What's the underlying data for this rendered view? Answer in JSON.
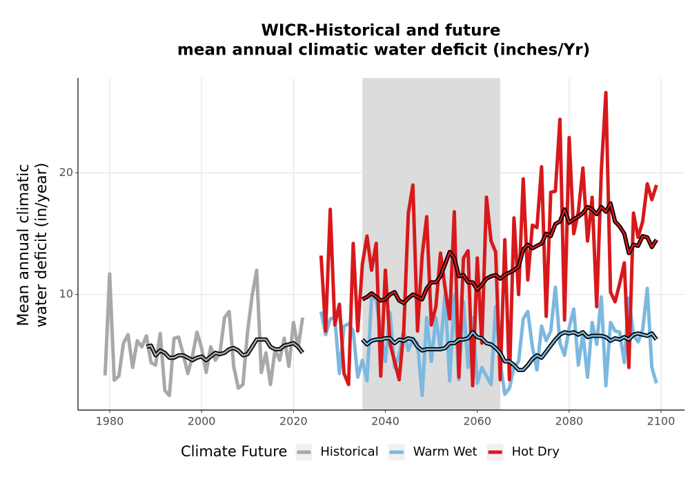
{
  "chart_data": {
    "type": "line",
    "title": [
      "WICR-Historical and future",
      "mean annual climatic water deficit (inches/Yr)"
    ],
    "y_label": [
      "Mean annual climatic",
      "water deficit (in/year)"
    ],
    "legend_title": "Climate Future",
    "legend_position": "bottom",
    "grid": true,
    "xlim": [
      1973.1,
      2105.1
    ],
    "xticks": [
      1980,
      2000,
      2020,
      2040,
      2060,
      2080,
      2100
    ],
    "ylim": [
      0.5,
      27.8
    ],
    "yticks": [
      10,
      20
    ],
    "shade": {
      "range": [
        2035,
        2065
      ],
      "color": "#dcdcdc"
    },
    "trend_color": "#000000",
    "series": [
      {
        "name": "Historical",
        "color": "#a8a8a8",
        "x": [
          1979,
          1980,
          1981,
          1982,
          1983,
          1984,
          1985,
          1986,
          1987,
          1988,
          1989,
          1990,
          1991,
          1992,
          1993,
          1994,
          1995,
          1996,
          1997,
          1998,
          1999,
          2000,
          2001,
          2002,
          2003,
          2004,
          2005,
          2006,
          2007,
          2008,
          2009,
          2010,
          2011,
          2012,
          2013,
          2014,
          2015,
          2016,
          2017,
          2018,
          2019,
          2020,
          2021,
          2022
        ],
        "values": [
          3.35,
          11.7,
          2.95,
          3.3,
          6.0,
          6.7,
          4.0,
          6.2,
          5.7,
          6.6,
          4.4,
          4.2,
          6.8,
          2.1,
          1.7,
          6.4,
          6.5,
          5.1,
          3.5,
          4.9,
          6.9,
          5.6,
          3.6,
          5.7,
          4.6,
          5.2,
          8.1,
          8.6,
          4.1,
          2.3,
          2.6,
          6.9,
          9.9,
          12.0,
          3.6,
          5.2,
          2.6,
          5.5,
          4.6,
          6.4,
          4.1,
          7.7,
          5.6,
          8.1
        ],
        "trend": [
          null,
          null,
          null,
          null,
          null,
          null,
          null,
          null,
          null,
          5.7,
          5.8,
          5.0,
          5.4,
          5.2,
          4.8,
          4.8,
          5.0,
          5.0,
          4.8,
          4.6,
          4.8,
          4.9,
          4.6,
          4.9,
          5.2,
          5.1,
          5.2,
          5.5,
          5.6,
          5.4,
          5.0,
          5.1,
          5.7,
          6.3,
          6.3,
          6.3,
          5.7,
          5.5,
          5.5,
          5.8,
          5.9,
          6.0,
          5.7,
          5.2
        ]
      },
      {
        "name": "Warm Wet",
        "color": "#7cb8e0",
        "x": [
          2026,
          2027,
          2028,
          2029,
          2030,
          2031,
          2032,
          2033,
          2034,
          2035,
          2036,
          2037,
          2038,
          2039,
          2040,
          2041,
          2042,
          2043,
          2044,
          2045,
          2046,
          2047,
          2048,
          2049,
          2050,
          2051,
          2052,
          2053,
          2054,
          2055,
          2056,
          2057,
          2058,
          2059,
          2060,
          2061,
          2062,
          2063,
          2064,
          2065,
          2066,
          2067,
          2068,
          2069,
          2070,
          2071,
          2072,
          2073,
          2074,
          2075,
          2076,
          2077,
          2078,
          2079,
          2080,
          2081,
          2082,
          2083,
          2084,
          2085,
          2086,
          2087,
          2088,
          2089,
          2090,
          2091,
          2092,
          2093,
          2094,
          2095,
          2096,
          2097,
          2098,
          2099
        ],
        "values": [
          8.6,
          6.7,
          8.0,
          8.1,
          3.5,
          7.4,
          7.6,
          7.0,
          3.2,
          4.6,
          2.9,
          9.8,
          9.6,
          6.9,
          4.5,
          8.5,
          4.0,
          5.1,
          7.0,
          5.4,
          6.4,
          6.0,
          1.7,
          8.1,
          4.5,
          8.1,
          5.5,
          10.1,
          2.9,
          10.0,
          3.0,
          9.4,
          4.0,
          8.1,
          2.7,
          4.0,
          3.3,
          2.6,
          9.0,
          4.4,
          1.8,
          2.3,
          4.0,
          4.5,
          8.0,
          8.6,
          5.7,
          3.8,
          7.4,
          6.2,
          7.0,
          10.6,
          6.0,
          5.0,
          7.3,
          8.8,
          4.2,
          6.8,
          3.2,
          7.7,
          5.9,
          9.8,
          2.5,
          7.7,
          7.0,
          6.9,
          4.4,
          9.7,
          6.7,
          6.1,
          7.1,
          10.5,
          4.0,
          2.7
        ],
        "trend": [
          null,
          null,
          null,
          null,
          null,
          null,
          null,
          null,
          null,
          6.3,
          5.9,
          6.2,
          6.3,
          6.3,
          6.4,
          6.4,
          6.0,
          6.3,
          6.2,
          6.4,
          6.3,
          5.7,
          5.4,
          5.5,
          5.5,
          5.5,
          5.5,
          5.6,
          6.0,
          6.0,
          6.3,
          6.3,
          6.4,
          6.9,
          6.5,
          6.4,
          6.0,
          5.9,
          5.6,
          5.2,
          4.5,
          4.5,
          4.2,
          3.8,
          3.8,
          4.2,
          4.7,
          5.0,
          4.8,
          5.3,
          5.8,
          6.3,
          6.7,
          6.9,
          6.8,
          6.9,
          6.7,
          6.9,
          6.5,
          6.6,
          6.6,
          6.6,
          6.5,
          6.2,
          6.4,
          6.3,
          6.5,
          6.3,
          6.7,
          6.8,
          6.7,
          6.6,
          6.8,
          6.3
        ]
      },
      {
        "name": "Hot Dry",
        "color": "#d7191c",
        "x": [
          2026,
          2027,
          2028,
          2029,
          2030,
          2031,
          2032,
          2033,
          2034,
          2035,
          2036,
          2037,
          2038,
          2039,
          2040,
          2041,
          2042,
          2043,
          2044,
          2045,
          2046,
          2047,
          2048,
          2049,
          2050,
          2051,
          2052,
          2053,
          2054,
          2055,
          2056,
          2057,
          2058,
          2059,
          2060,
          2061,
          2062,
          2063,
          2064,
          2065,
          2066,
          2067,
          2068,
          2069,
          2070,
          2071,
          2072,
          2073,
          2074,
          2075,
          2076,
          2077,
          2078,
          2079,
          2080,
          2081,
          2082,
          2083,
          2084,
          2085,
          2086,
          2087,
          2088,
          2089,
          2090,
          2091,
          2092,
          2093,
          2094,
          2095,
          2096,
          2097,
          2098,
          2099
        ],
        "values": [
          13.2,
          7.0,
          17.0,
          7.5,
          9.2,
          3.5,
          2.6,
          14.2,
          7.0,
          12.5,
          14.8,
          12.0,
          14.2,
          3.3,
          12.0,
          6.0,
          4.5,
          3.0,
          7.0,
          16.7,
          19.0,
          7.0,
          13.2,
          16.4,
          7.5,
          9.0,
          13.4,
          10.5,
          8.0,
          16.8,
          3.2,
          13.0,
          13.6,
          2.5,
          13.0,
          6.0,
          18.0,
          14.4,
          13.5,
          3.0,
          14.5,
          3.0,
          16.3,
          10.0,
          19.5,
          11.2,
          15.7,
          15.5,
          20.5,
          8.2,
          18.4,
          18.5,
          24.4,
          7.9,
          22.9,
          15.0,
          16.8,
          20.4,
          14.4,
          18.0,
          9.0,
          20.2,
          26.6,
          10.2,
          9.4,
          10.9,
          12.6,
          4.0,
          16.7,
          14.7,
          16.0,
          19.1,
          17.8,
          19.0
        ],
        "trend": [
          null,
          null,
          null,
          null,
          null,
          null,
          null,
          null,
          null,
          9.6,
          9.8,
          10.1,
          9.8,
          9.5,
          9.6,
          10.0,
          10.2,
          9.5,
          9.3,
          9.7,
          10.0,
          9.8,
          9.6,
          10.5,
          11.0,
          11.0,
          11.5,
          12.5,
          13.5,
          13.0,
          11.5,
          11.6,
          11.0,
          11.0,
          10.4,
          10.8,
          11.3,
          11.5,
          11.6,
          11.3,
          11.6,
          11.8,
          12.0,
          12.3,
          13.7,
          14.1,
          13.8,
          14.0,
          14.2,
          15.0,
          14.8,
          15.8,
          16.0,
          17.0,
          15.9,
          16.2,
          16.4,
          16.7,
          17.2,
          17.0,
          16.6,
          17.2,
          16.8,
          17.5,
          16.0,
          15.6,
          15.0,
          13.4,
          14.1,
          14.0,
          14.8,
          14.7,
          13.9,
          14.5
        ]
      }
    ]
  }
}
